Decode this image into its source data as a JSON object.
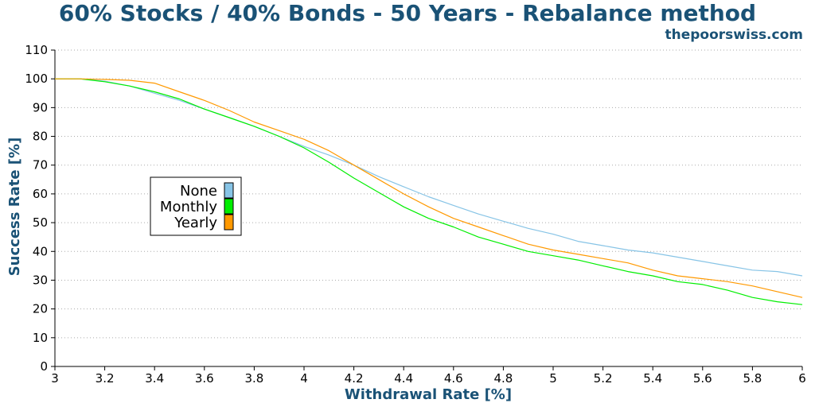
{
  "colors": {
    "title": "#1a5276",
    "none": "#87c4e6",
    "monthly": "#00ee00",
    "yearly": "#ff9900",
    "grid": "#aaaaaa"
  },
  "chart_data": {
    "type": "line",
    "title": "60% Stocks / 40% Bonds - 50 Years - Rebalance method",
    "subtitle": "thepoorswiss.com",
    "xlabel": "Withdrawal Rate [%]",
    "ylabel": "Success Rate [%]",
    "xlim": [
      3,
      6
    ],
    "ylim": [
      0,
      110
    ],
    "grid": "horizontal-dotted",
    "legend_position": "center-left",
    "xticks": [
      "3",
      "3.2",
      "3.4",
      "3.6",
      "3.8",
      "4",
      "4.2",
      "4.4",
      "4.6",
      "4.8",
      "5",
      "5.2",
      "5.4",
      "5.6",
      "5.8",
      "6"
    ],
    "yticks": [
      "0",
      "10",
      "20",
      "30",
      "40",
      "50",
      "60",
      "70",
      "80",
      "90",
      "100",
      "110"
    ],
    "x": [
      3.0,
      3.1,
      3.2,
      3.3,
      3.4,
      3.5,
      3.6,
      3.7,
      3.8,
      3.9,
      4.0,
      4.1,
      4.2,
      4.3,
      4.4,
      4.5,
      4.6,
      4.7,
      4.8,
      4.9,
      5.0,
      5.1,
      5.2,
      5.3,
      5.4,
      5.5,
      5.6,
      5.7,
      5.8,
      5.9,
      6.0
    ],
    "series": [
      {
        "name": "None",
        "color_key": "none",
        "values": [
          100,
          100,
          99.2,
          97.5,
          95,
          92.5,
          89.5,
          86.5,
          83.5,
          80,
          76.5,
          73.5,
          70,
          66,
          62.5,
          59,
          56,
          53,
          50.5,
          48,
          46,
          43.5,
          42,
          40.5,
          39.5,
          38,
          36.5,
          35,
          33.5,
          33,
          31.5
        ]
      },
      {
        "name": "Monthly",
        "color_key": "monthly",
        "values": [
          100,
          100,
          99,
          97.5,
          95.5,
          93,
          89.5,
          86.5,
          83.5,
          80,
          76,
          71,
          65.5,
          60.5,
          55.5,
          51.5,
          48.5,
          45,
          42.5,
          40,
          38.5,
          37,
          35,
          33,
          31.5,
          29.5,
          28.5,
          26.5,
          24,
          22.5,
          21.5
        ]
      },
      {
        "name": "Yearly",
        "color_key": "yearly",
        "values": [
          100,
          100,
          99.8,
          99.5,
          98.5,
          95.5,
          92.5,
          89,
          85,
          82,
          79,
          75,
          70,
          65,
          60,
          55.5,
          51.5,
          48.5,
          45.5,
          42.5,
          40.5,
          39,
          37.5,
          36,
          33.5,
          31.5,
          30.5,
          29.5,
          28,
          26,
          24
        ]
      }
    ]
  }
}
